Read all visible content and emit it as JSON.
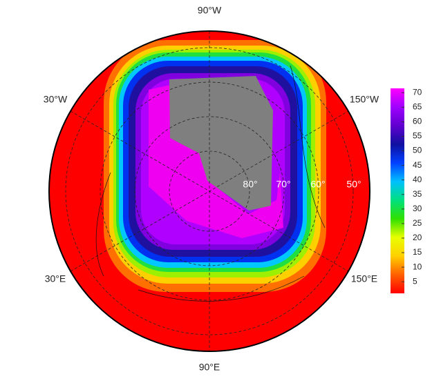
{
  "map": {
    "lon_labels": [
      "90°W",
      "30°W",
      "150°W",
      "30°E",
      "150°E",
      "90°E"
    ],
    "lat_labels": [
      "80°",
      "70°",
      "60°",
      "50°"
    ]
  },
  "colorbar": {
    "lim": [
      1,
      71.5
    ],
    "ticks": [
      5,
      10,
      15,
      20,
      25,
      30,
      35,
      40,
      45,
      50,
      55,
      60,
      65,
      70
    ],
    "colors": [
      "#ff0000",
      "#ff6000",
      "#ffd000",
      "#e8ff00",
      "#30e000",
      "#00e080",
      "#00c0ff",
      "#0040ff",
      "#1010a0",
      "#6000d0",
      "#a000ff",
      "#ff00ff"
    ]
  }
}
